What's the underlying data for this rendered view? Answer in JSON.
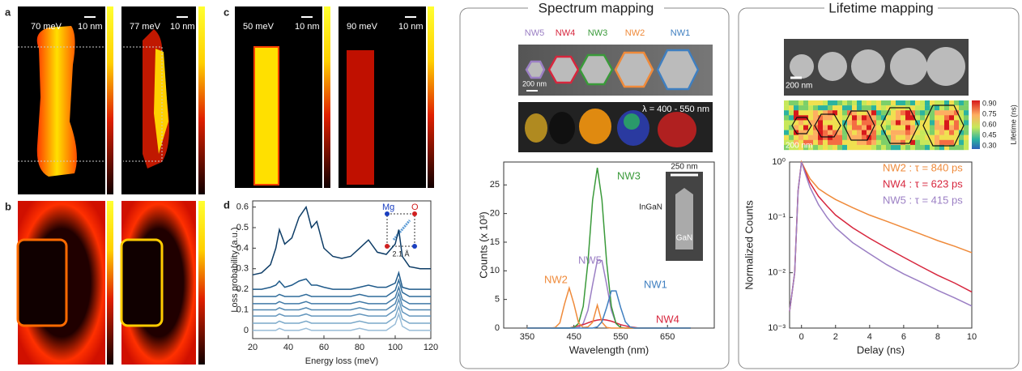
{
  "panels": {
    "a": {
      "label": "a",
      "images": [
        {
          "energy": "70 meV",
          "scale": "10 nm"
        },
        {
          "energy": "77 meV",
          "scale": "10 nm"
        }
      ]
    },
    "b": {
      "label": "b"
    },
    "c": {
      "label": "c",
      "images": [
        {
          "energy": "50 meV",
          "scale": "10 nm"
        },
        {
          "energy": "90 meV",
          "scale": "10 nm"
        }
      ]
    },
    "d": {
      "label": "d"
    }
  },
  "spectrum_mapping": {
    "title": "Spectrum mapping",
    "nanowires": [
      "NW5",
      "NW4",
      "NW3",
      "NW2",
      "NW1"
    ],
    "sem_scale": "200 nm",
    "wavelength_range": "λ = 400 - 550 nm",
    "inset_scale": "250 nm",
    "inset_labels": [
      "InGaN",
      "GaN"
    ]
  },
  "lifetime_mapping": {
    "title": "Lifetime mapping",
    "sem_scale": "200 nm",
    "map_scale": "200 nm",
    "colorbar_label": "Lifetime (ns)",
    "colorbar_ticks": [
      "0.90",
      "0.75",
      "0.60",
      "0.45",
      "0.30"
    ]
  },
  "chart_data": [
    {
      "type": "line",
      "x_label": "Energy loss (meV)",
      "y_label": "Loss probability (a.u.)",
      "annotations": [
        "Mg",
        "O",
        "2.1 Å"
      ],
      "x": [
        20,
        25,
        30,
        33,
        35,
        38,
        42,
        46,
        50,
        53,
        56,
        60,
        65,
        70,
        75,
        80,
        85,
        90,
        95,
        100,
        102,
        104,
        108,
        114,
        120
      ],
      "xlim": [
        20,
        120
      ],
      "xticks": [
        20,
        40,
        60,
        80,
        100,
        120
      ],
      "ylim": [
        -0.04,
        0.63
      ],
      "yticks": [
        0,
        0.1,
        0.2,
        0.3,
        0.4,
        0.5,
        0.6
      ],
      "series": [
        {
          "color": "#0d3c66",
          "values": [
            0.27,
            0.28,
            0.32,
            0.4,
            0.49,
            0.42,
            0.45,
            0.55,
            0.6,
            0.5,
            0.53,
            0.4,
            0.36,
            0.35,
            0.36,
            0.4,
            0.44,
            0.38,
            0.37,
            0.42,
            0.49,
            0.36,
            0.31,
            0.3,
            0.3
          ]
        },
        {
          "color": "#1f5a8a",
          "values": [
            0.2,
            0.2,
            0.21,
            0.22,
            0.24,
            0.21,
            0.22,
            0.24,
            0.25,
            0.22,
            0.22,
            0.21,
            0.2,
            0.2,
            0.2,
            0.21,
            0.22,
            0.21,
            0.21,
            0.23,
            0.28,
            0.21,
            0.2,
            0.2,
            0.2
          ]
        },
        {
          "color": "#2f6b9a",
          "values": [
            0.165,
            0.165,
            0.165,
            0.165,
            0.175,
            0.165,
            0.165,
            0.165,
            0.175,
            0.165,
            0.165,
            0.165,
            0.165,
            0.165,
            0.165,
            0.175,
            0.165,
            0.165,
            0.165,
            0.195,
            0.245,
            0.185,
            0.165,
            0.165,
            0.165
          ]
        },
        {
          "color": "#4079a6",
          "values": [
            0.13,
            0.13,
            0.13,
            0.13,
            0.14,
            0.13,
            0.13,
            0.13,
            0.14,
            0.13,
            0.13,
            0.13,
            0.13,
            0.13,
            0.13,
            0.14,
            0.13,
            0.13,
            0.13,
            0.16,
            0.21,
            0.15,
            0.13,
            0.13,
            0.13
          ]
        },
        {
          "color": "#5187b1",
          "values": [
            0.1,
            0.1,
            0.1,
            0.1,
            0.11,
            0.1,
            0.1,
            0.1,
            0.11,
            0.1,
            0.1,
            0.1,
            0.1,
            0.1,
            0.1,
            0.11,
            0.1,
            0.1,
            0.1,
            0.13,
            0.18,
            0.12,
            0.1,
            0.1,
            0.1
          ]
        },
        {
          "color": "#6496bd",
          "values": [
            0.07,
            0.07,
            0.07,
            0.07,
            0.08,
            0.07,
            0.07,
            0.07,
            0.08,
            0.07,
            0.07,
            0.07,
            0.07,
            0.07,
            0.07,
            0.08,
            0.07,
            0.07,
            0.07,
            0.1,
            0.15,
            0.09,
            0.07,
            0.07,
            0.07
          ]
        },
        {
          "color": "#7aa8c9",
          "values": [
            0.035,
            0.035,
            0.035,
            0.035,
            0.045,
            0.035,
            0.035,
            0.035,
            0.045,
            0.035,
            0.035,
            0.035,
            0.035,
            0.035,
            0.035,
            0.045,
            0.035,
            0.035,
            0.035,
            0.065,
            0.115,
            0.055,
            0.035,
            0.035,
            0.035
          ]
        },
        {
          "color": "#98bcd8",
          "values": [
            0,
            0,
            0,
            0,
            0.01,
            0,
            0,
            0,
            0.01,
            0,
            0,
            0,
            0,
            0,
            0,
            0.01,
            0,
            0,
            0,
            0.03,
            0.08,
            0.02,
            0,
            0,
            0
          ]
        }
      ]
    },
    {
      "type": "line",
      "x_label": "Wavelength (nm)",
      "y_label": "Counts (x 10³)",
      "x": [
        350,
        360,
        370,
        380,
        390,
        400,
        410,
        420,
        430,
        440,
        450,
        460,
        470,
        480,
        490,
        500,
        510,
        520,
        530,
        540,
        550,
        560,
        570,
        580,
        590,
        600,
        610,
        620,
        630,
        640,
        650,
        660,
        670,
        680,
        690,
        700
      ],
      "xlim": [
        300,
        750
      ],
      "xticks": [
        350,
        450,
        550,
        650
      ],
      "ylim": [
        0,
        29
      ],
      "yticks": [
        0,
        5,
        10,
        15,
        20,
        25
      ],
      "series": [
        {
          "name": "NW5",
          "color": "#9b7fc4",
          "values": [
            0,
            0,
            0,
            0,
            0,
            0,
            0,
            0,
            0,
            0,
            0,
            0.1,
            0.8,
            3.1,
            7.6,
            11.8,
            11.8,
            7.6,
            3.1,
            0.8,
            0.1,
            0,
            0,
            0,
            0,
            0,
            0,
            0,
            0,
            0,
            0,
            0,
            0,
            0,
            0,
            0
          ]
        },
        {
          "name": "NW4",
          "color": "#d7263d",
          "values": [
            0,
            0,
            0,
            0,
            0,
            0,
            0,
            0,
            0,
            0,
            0.2,
            0.4,
            0.6,
            0.9,
            1.2,
            1.4,
            1.5,
            1.4,
            1.2,
            0.9,
            0.6,
            0.4,
            0.2,
            0.1,
            0,
            0,
            0,
            0,
            0,
            0,
            0,
            0,
            0,
            0,
            0,
            0
          ]
        },
        {
          "name": "NW3",
          "color": "#3a9a3a",
          "values": [
            0,
            0,
            0,
            0,
            0,
            0,
            0,
            0,
            0,
            0,
            0.1,
            0.8,
            3.8,
            11.5,
            22.4,
            28,
            22.4,
            11.5,
            3.8,
            0.8,
            0.1,
            0,
            0,
            0,
            0,
            0,
            0,
            0,
            0,
            0,
            0,
            0,
            0,
            0,
            0,
            0
          ]
        },
        {
          "name": "NW2",
          "color": "#ef8a3a",
          "values": [
            0,
            0,
            0,
            0,
            0,
            0,
            0.1,
            0.9,
            4.2,
            7,
            4.2,
            0.9,
            0.1,
            0.2,
            1,
            4,
            1,
            0.1,
            0,
            0,
            0,
            0,
            0,
            0,
            0,
            0,
            0,
            0,
            0,
            0,
            0,
            0,
            0,
            0,
            0,
            0
          ]
        },
        {
          "name": "NW1",
          "color": "#3f7fc0",
          "values": [
            0,
            0,
            0,
            0,
            0,
            0,
            0,
            0,
            0,
            0,
            0,
            0,
            0,
            0,
            0,
            0.2,
            1.1,
            3.6,
            6.5,
            6.5,
            3.6,
            1.1,
            0.2,
            0,
            0,
            0,
            0,
            0,
            0,
            0,
            0,
            0,
            0,
            0,
            0,
            0
          ]
        }
      ]
    },
    {
      "type": "line",
      "x_label": "Delay (ns)",
      "y_label": "Normalized Counts",
      "log_y": true,
      "x": [
        -0.7,
        -0.4,
        -0.2,
        0,
        0.2,
        0.5,
        1,
        1.5,
        2,
        3,
        4,
        5,
        6,
        7,
        8,
        9,
        10
      ],
      "xlim": [
        -0.7,
        10
      ],
      "xticks": [
        0,
        2,
        4,
        6,
        8,
        10
      ],
      "ylim": [
        0.001,
        1
      ],
      "yticks": [
        {
          "value": 1,
          "label": "10⁰"
        },
        {
          "value": 0.1,
          "label": "10⁻¹"
        },
        {
          "value": 0.01,
          "label": "10⁻²"
        },
        {
          "value": 0.001,
          "label": "10⁻³"
        }
      ],
      "series": [
        {
          "name": "NW2 : τ = 840 ps",
          "color": "#ef8a3a",
          "values": [
            0.002,
            0.01,
            0.3,
            1,
            0.75,
            0.5,
            0.33,
            0.26,
            0.21,
            0.15,
            0.11,
            0.085,
            0.065,
            0.05,
            0.038,
            0.03,
            0.023
          ]
        },
        {
          "name": "NW4 : τ = 623 ps",
          "color": "#d7263d",
          "values": [
            0.002,
            0.01,
            0.3,
            1,
            0.7,
            0.42,
            0.24,
            0.16,
            0.11,
            0.065,
            0.042,
            0.028,
            0.019,
            0.013,
            0.009,
            0.0065,
            0.0045
          ]
        },
        {
          "name": "NW5 : τ = 415 ps",
          "color": "#9b7fc4",
          "values": [
            0.002,
            0.01,
            0.3,
            1,
            0.65,
            0.35,
            0.17,
            0.1,
            0.065,
            0.035,
            0.022,
            0.014,
            0.0095,
            0.0068,
            0.0048,
            0.0035,
            0.0025
          ]
        }
      ]
    }
  ]
}
